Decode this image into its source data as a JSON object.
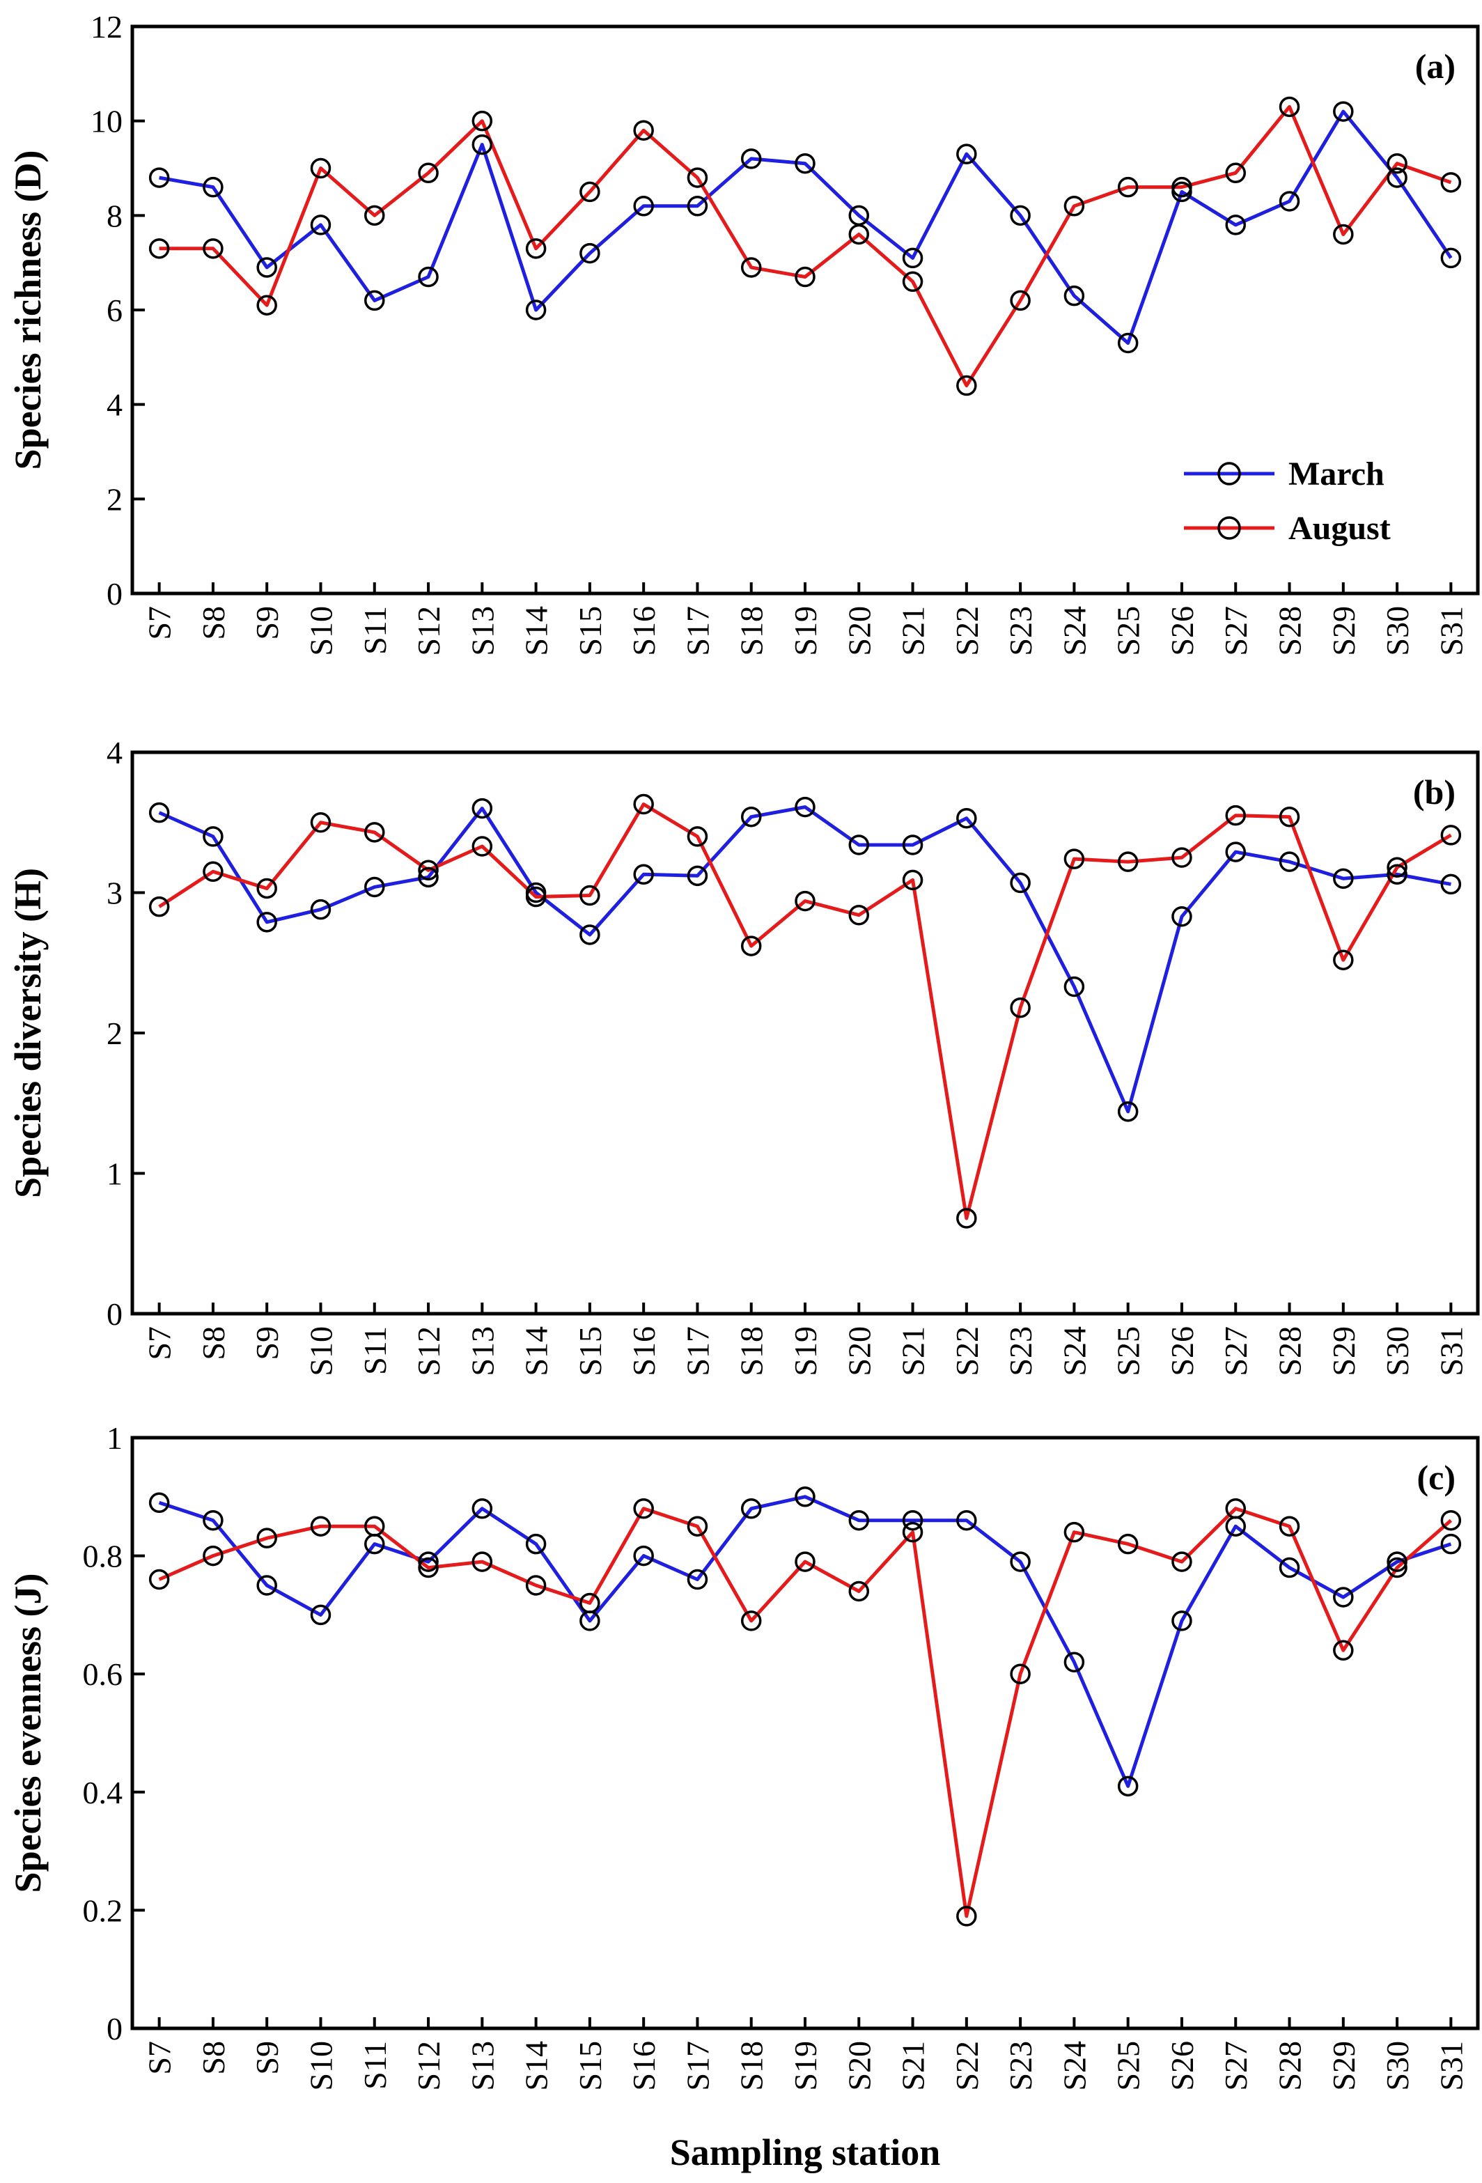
{
  "xlabel": "Sampling station",
  "stations": [
    "S7",
    "S8",
    "S9",
    "S10",
    "S11",
    "S12",
    "S13",
    "S14",
    "S15",
    "S16",
    "S17",
    "S18",
    "S19",
    "S20",
    "S21",
    "S22",
    "S23",
    "S24",
    "S25",
    "S26",
    "S27",
    "S28",
    "S29",
    "S30",
    "S31"
  ],
  "colors": {
    "march": "#1f1fe0",
    "august": "#e51a1a",
    "marker": "#000000"
  },
  "legend": {
    "placement": "lower-right",
    "panel": 0,
    "items": [
      "March",
      "August"
    ]
  },
  "chart_data": [
    {
      "type": "line",
      "panel_label": "(a)",
      "ylabel": "Species richness (D)",
      "ylim": [
        0,
        12
      ],
      "yticks": [
        0,
        2,
        4,
        6,
        8,
        10,
        12
      ],
      "categories": [
        "S7",
        "S8",
        "S9",
        "S10",
        "S11",
        "S12",
        "S13",
        "S14",
        "S15",
        "S16",
        "S17",
        "S18",
        "S19",
        "S20",
        "S21",
        "S22",
        "S23",
        "S24",
        "S25",
        "S26",
        "S27",
        "S28",
        "S29",
        "S30",
        "S31"
      ],
      "series": [
        {
          "name": "March",
          "values": [
            8.8,
            8.6,
            6.9,
            7.8,
            6.2,
            6.7,
            9.5,
            6.0,
            7.2,
            8.2,
            8.2,
            9.2,
            9.1,
            8.0,
            7.1,
            9.3,
            8.0,
            6.3,
            5.3,
            8.5,
            7.8,
            8.3,
            10.2,
            8.8,
            7.1
          ]
        },
        {
          "name": "August",
          "values": [
            7.3,
            7.3,
            6.1,
            9.0,
            8.0,
            8.9,
            10.0,
            7.3,
            8.5,
            9.8,
            8.8,
            6.9,
            6.7,
            7.6,
            6.6,
            4.4,
            6.2,
            8.2,
            8.6,
            8.6,
            8.9,
            10.3,
            7.6,
            9.1,
            8.7
          ]
        }
      ]
    },
    {
      "type": "line",
      "panel_label": "(b)",
      "ylabel": "Species diversity (H)",
      "ylim": [
        0,
        4
      ],
      "yticks": [
        0,
        1,
        2,
        3,
        4
      ],
      "categories": [
        "S7",
        "S8",
        "S9",
        "S10",
        "S11",
        "S12",
        "S13",
        "S14",
        "S15",
        "S16",
        "S17",
        "S18",
        "S19",
        "S20",
        "S21",
        "S22",
        "S23",
        "S24",
        "S25",
        "S26",
        "S27",
        "S28",
        "S29",
        "S30",
        "S31"
      ],
      "series": [
        {
          "name": "March",
          "values": [
            3.57,
            3.4,
            2.79,
            2.88,
            3.04,
            3.11,
            3.6,
            3.0,
            2.7,
            3.13,
            3.12,
            3.54,
            3.61,
            3.34,
            3.34,
            3.53,
            3.07,
            2.33,
            1.44,
            2.83,
            3.29,
            3.22,
            3.1,
            3.13,
            3.06
          ]
        },
        {
          "name": "August",
          "values": [
            2.9,
            3.15,
            3.03,
            3.5,
            3.43,
            3.16,
            3.33,
            2.97,
            2.98,
            3.63,
            3.4,
            2.62,
            2.94,
            2.84,
            3.09,
            0.68,
            2.18,
            3.24,
            3.22,
            3.25,
            3.55,
            3.54,
            2.52,
            3.18,
            3.41
          ]
        }
      ]
    },
    {
      "type": "line",
      "panel_label": "(c)",
      "ylabel": "Species evenness (J)",
      "ylim": [
        0,
        1
      ],
      "yticks": [
        0,
        0.2,
        0.4,
        0.6,
        0.8,
        1
      ],
      "categories": [
        "S7",
        "S8",
        "S9",
        "S10",
        "S11",
        "S12",
        "S13",
        "S14",
        "S15",
        "S16",
        "S17",
        "S18",
        "S19",
        "S20",
        "S21",
        "S22",
        "S23",
        "S24",
        "S25",
        "S26",
        "S27",
        "S28",
        "S29",
        "S30",
        "S31"
      ],
      "series": [
        {
          "name": "March",
          "values": [
            0.89,
            0.86,
            0.75,
            0.7,
            0.82,
            0.79,
            0.88,
            0.82,
            0.69,
            0.8,
            0.76,
            0.88,
            0.9,
            0.86,
            0.86,
            0.86,
            0.79,
            0.62,
            0.41,
            0.69,
            0.85,
            0.78,
            0.73,
            0.79,
            0.82
          ]
        },
        {
          "name": "August",
          "values": [
            0.76,
            0.8,
            0.83,
            0.85,
            0.85,
            0.78,
            0.79,
            0.75,
            0.72,
            0.88,
            0.85,
            0.69,
            0.79,
            0.74,
            0.84,
            0.19,
            0.6,
            0.84,
            0.82,
            0.79,
            0.88,
            0.85,
            0.64,
            0.78,
            0.86
          ]
        }
      ]
    }
  ]
}
